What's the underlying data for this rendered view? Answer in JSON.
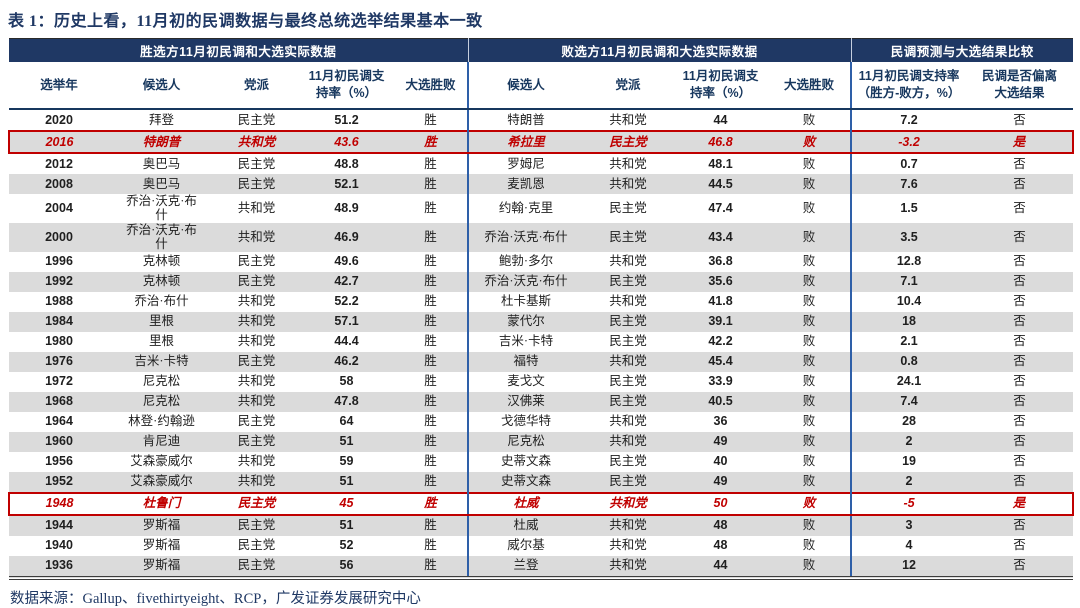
{
  "title": "表 1：历史上看，11月初的民调数据与最终总统选举结果基本一致",
  "colors": {
    "header_navy": "#1F3864",
    "subheader_text": "#17375E",
    "highlight_red": "#C00000",
    "stripe_gray": "#DBDBDB",
    "separator_blue": "#2E5FA8"
  },
  "table": {
    "groups": [
      {
        "label": "胜选方11月初民调和大选实际数据",
        "colspan": 5
      },
      {
        "label": "败选方11月初民调和大选实际数据",
        "colspan": 4
      },
      {
        "label": "民调预测与大选结果比较",
        "colspan": 2
      }
    ],
    "columns": [
      "选举年",
      "候选人",
      "党派",
      "11月初民调支\n持率（%）",
      "大选胜败",
      "候选人",
      "党派",
      "11月初民调支\n持率（%）",
      "大选胜败",
      "11月初民调支持率\n（胜方-败方，%）",
      "民调是否偏离\n大选结果"
    ],
    "rows": [
      {
        "year": "2020",
        "winner": {
          "candidate": "拜登",
          "party": "民主党",
          "poll": "51.2",
          "result": "胜"
        },
        "loser": {
          "candidate": "特朗普",
          "party": "共和党",
          "poll": "44",
          "result": "败"
        },
        "compare": {
          "diff": "7.2",
          "deviated": "否"
        },
        "highlight": false
      },
      {
        "year": "2016",
        "winner": {
          "candidate": "特朗普",
          "party": "共和党",
          "poll": "43.6",
          "result": "胜"
        },
        "loser": {
          "candidate": "希拉里",
          "party": "民主党",
          "poll": "46.8",
          "result": "败"
        },
        "compare": {
          "diff": "-3.2",
          "deviated": "是"
        },
        "highlight": true
      },
      {
        "year": "2012",
        "winner": {
          "candidate": "奥巴马",
          "party": "民主党",
          "poll": "48.8",
          "result": "胜"
        },
        "loser": {
          "candidate": "罗姆尼",
          "party": "共和党",
          "poll": "48.1",
          "result": "败"
        },
        "compare": {
          "diff": "0.7",
          "deviated": "否"
        },
        "highlight": false
      },
      {
        "year": "2008",
        "winner": {
          "candidate": "奥巴马",
          "party": "民主党",
          "poll": "52.1",
          "result": "胜"
        },
        "loser": {
          "candidate": "麦凯恩",
          "party": "共和党",
          "poll": "44.5",
          "result": "败"
        },
        "compare": {
          "diff": "7.6",
          "deviated": "否"
        },
        "highlight": false
      },
      {
        "year": "2004",
        "winner": {
          "candidate": "乔治·沃克·布\n什",
          "party": "共和党",
          "poll": "48.9",
          "result": "胜"
        },
        "loser": {
          "candidate": "约翰·克里",
          "party": "民主党",
          "poll": "47.4",
          "result": "败"
        },
        "compare": {
          "diff": "1.5",
          "deviated": "否"
        },
        "highlight": false
      },
      {
        "year": "2000",
        "winner": {
          "candidate": "乔治·沃克·布\n什",
          "party": "共和党",
          "poll": "46.9",
          "result": "胜"
        },
        "loser": {
          "candidate": "乔治·沃克·布什",
          "party": "民主党",
          "poll": "43.4",
          "result": "败"
        },
        "compare": {
          "diff": "3.5",
          "deviated": "否"
        },
        "highlight": false
      },
      {
        "year": "1996",
        "winner": {
          "candidate": "克林顿",
          "party": "民主党",
          "poll": "49.6",
          "result": "胜"
        },
        "loser": {
          "candidate": "鲍勃·多尔",
          "party": "共和党",
          "poll": "36.8",
          "result": "败"
        },
        "compare": {
          "diff": "12.8",
          "deviated": "否"
        },
        "highlight": false
      },
      {
        "year": "1992",
        "winner": {
          "candidate": "克林顿",
          "party": "民主党",
          "poll": "42.7",
          "result": "胜"
        },
        "loser": {
          "candidate": "乔治·沃克·布什",
          "party": "民主党",
          "poll": "35.6",
          "result": "败"
        },
        "compare": {
          "diff": "7.1",
          "deviated": "否"
        },
        "highlight": false
      },
      {
        "year": "1988",
        "winner": {
          "candidate": "乔治·布什",
          "party": "共和党",
          "poll": "52.2",
          "result": "胜"
        },
        "loser": {
          "candidate": "杜卡基斯",
          "party": "共和党",
          "poll": "41.8",
          "result": "败"
        },
        "compare": {
          "diff": "10.4",
          "deviated": "否"
        },
        "highlight": false
      },
      {
        "year": "1984",
        "winner": {
          "candidate": "里根",
          "party": "共和党",
          "poll": "57.1",
          "result": "胜"
        },
        "loser": {
          "candidate": "蒙代尔",
          "party": "民主党",
          "poll": "39.1",
          "result": "败"
        },
        "compare": {
          "diff": "18",
          "deviated": "否"
        },
        "highlight": false
      },
      {
        "year": "1980",
        "winner": {
          "candidate": "里根",
          "party": "共和党",
          "poll": "44.4",
          "result": "胜"
        },
        "loser": {
          "candidate": "吉米·卡特",
          "party": "民主党",
          "poll": "42.2",
          "result": "败"
        },
        "compare": {
          "diff": "2.1",
          "deviated": "否"
        },
        "highlight": false
      },
      {
        "year": "1976",
        "winner": {
          "candidate": "吉米·卡特",
          "party": "民主党",
          "poll": "46.2",
          "result": "胜"
        },
        "loser": {
          "candidate": "福特",
          "party": "共和党",
          "poll": "45.4",
          "result": "败"
        },
        "compare": {
          "diff": "0.8",
          "deviated": "否"
        },
        "highlight": false
      },
      {
        "year": "1972",
        "winner": {
          "candidate": "尼克松",
          "party": "共和党",
          "poll": "58",
          "result": "胜"
        },
        "loser": {
          "candidate": "麦戈文",
          "party": "民主党",
          "poll": "33.9",
          "result": "败"
        },
        "compare": {
          "diff": "24.1",
          "deviated": "否"
        },
        "highlight": false
      },
      {
        "year": "1968",
        "winner": {
          "candidate": "尼克松",
          "party": "共和党",
          "poll": "47.8",
          "result": "胜"
        },
        "loser": {
          "candidate": "汉佛莱",
          "party": "民主党",
          "poll": "40.5",
          "result": "败"
        },
        "compare": {
          "diff": "7.4",
          "deviated": "否"
        },
        "highlight": false
      },
      {
        "year": "1964",
        "winner": {
          "candidate": "林登·约翰逊",
          "party": "民主党",
          "poll": "64",
          "result": "胜"
        },
        "loser": {
          "candidate": "戈德华特",
          "party": "共和党",
          "poll": "36",
          "result": "败"
        },
        "compare": {
          "diff": "28",
          "deviated": "否"
        },
        "highlight": false
      },
      {
        "year": "1960",
        "winner": {
          "candidate": "肯尼迪",
          "party": "民主党",
          "poll": "51",
          "result": "胜"
        },
        "loser": {
          "candidate": "尼克松",
          "party": "共和党",
          "poll": "49",
          "result": "败"
        },
        "compare": {
          "diff": "2",
          "deviated": "否"
        },
        "highlight": false
      },
      {
        "year": "1956",
        "winner": {
          "candidate": "艾森豪威尔",
          "party": "共和党",
          "poll": "59",
          "result": "胜"
        },
        "loser": {
          "candidate": "史蒂文森",
          "party": "民主党",
          "poll": "40",
          "result": "败"
        },
        "compare": {
          "diff": "19",
          "deviated": "否"
        },
        "highlight": false
      },
      {
        "year": "1952",
        "winner": {
          "candidate": "艾森豪威尔",
          "party": "共和党",
          "poll": "51",
          "result": "胜"
        },
        "loser": {
          "candidate": "史蒂文森",
          "party": "民主党",
          "poll": "49",
          "result": "败"
        },
        "compare": {
          "diff": "2",
          "deviated": "否"
        },
        "highlight": false
      },
      {
        "year": "1948",
        "winner": {
          "candidate": "杜鲁门",
          "party": "民主党",
          "poll": "45",
          "result": "胜"
        },
        "loser": {
          "candidate": "杜威",
          "party": "共和党",
          "poll": "50",
          "result": "败"
        },
        "compare": {
          "diff": "-5",
          "deviated": "是"
        },
        "highlight": true
      },
      {
        "year": "1944",
        "winner": {
          "candidate": "罗斯福",
          "party": "民主党",
          "poll": "51",
          "result": "胜"
        },
        "loser": {
          "candidate": "杜威",
          "party": "共和党",
          "poll": "48",
          "result": "败"
        },
        "compare": {
          "diff": "3",
          "deviated": "否"
        },
        "highlight": false
      },
      {
        "year": "1940",
        "winner": {
          "candidate": "罗斯福",
          "party": "民主党",
          "poll": "52",
          "result": "胜"
        },
        "loser": {
          "candidate": "威尔基",
          "party": "共和党",
          "poll": "48",
          "result": "败"
        },
        "compare": {
          "diff": "4",
          "deviated": "否"
        },
        "highlight": false
      },
      {
        "year": "1936",
        "winner": {
          "candidate": "罗斯福",
          "party": "民主党",
          "poll": "56",
          "result": "胜"
        },
        "loser": {
          "candidate": "兰登",
          "party": "共和党",
          "poll": "44",
          "result": "败"
        },
        "compare": {
          "diff": "12",
          "deviated": "否"
        },
        "highlight": false
      }
    ]
  },
  "footer": {
    "source": "数据来源：Gallup、fivethirtyeight、RCP，广发证券发展研究中心"
  }
}
